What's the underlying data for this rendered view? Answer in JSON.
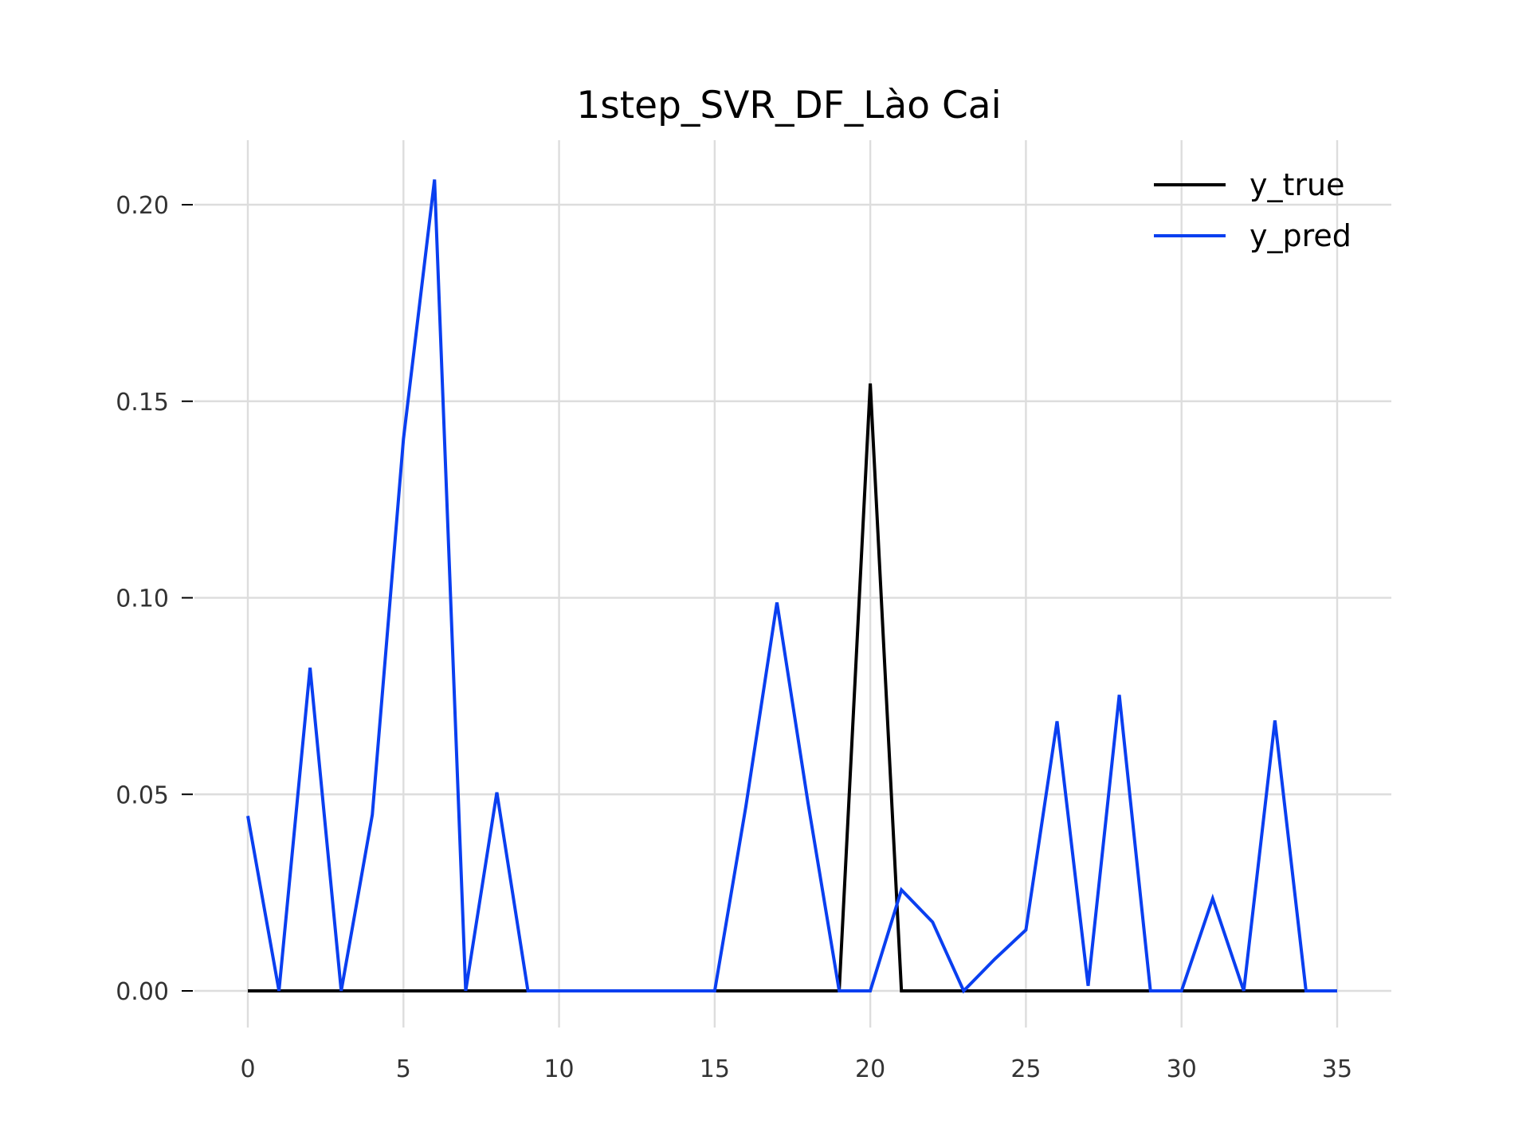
{
  "chart_data": {
    "type": "line",
    "title": "1step_SVR_DF_Lào Cai",
    "xlabel": "",
    "ylabel": "",
    "xlim": [
      0,
      35
    ],
    "ylim": [
      0,
      0.2
    ],
    "x_ticks": [
      0,
      5,
      10,
      15,
      20,
      25,
      30,
      35
    ],
    "x_tick_labels": [
      "0",
      "5",
      "10",
      "15",
      "20",
      "25",
      "30",
      "35"
    ],
    "y_ticks": [
      0,
      0.05,
      0.1,
      0.15,
      0.2
    ],
    "y_tick_labels": [
      "0.00",
      "0.05",
      "0.10",
      "0.15",
      "0.20"
    ],
    "grid": true,
    "legend_position": "top-right",
    "x": [
      0,
      1,
      2,
      3,
      4,
      5,
      6,
      7,
      8,
      9,
      10,
      11,
      12,
      13,
      14,
      15,
      16,
      17,
      18,
      19,
      20,
      21,
      22,
      23,
      24,
      25,
      26,
      27,
      28,
      29,
      30,
      31,
      32,
      33,
      34,
      35
    ],
    "series": [
      {
        "name": "y_true",
        "color": "#000000",
        "values": [
          0,
          0,
          0,
          0,
          0,
          0,
          0,
          0,
          0,
          0,
          0,
          0,
          0,
          0,
          0,
          0,
          0,
          0,
          0,
          0,
          0.1545,
          0,
          0,
          0,
          0,
          0,
          0,
          0,
          0,
          0,
          0,
          0,
          0,
          0,
          0,
          0
        ]
      },
      {
        "name": "y_pred",
        "color": "#0a3ff0",
        "values": [
          0.0445,
          0,
          0.0822,
          0,
          0.0448,
          0.1404,
          0.2064,
          0,
          0.0505,
          0,
          0,
          0,
          0,
          0,
          0,
          0,
          0.0468,
          0.0988,
          0.0478,
          0,
          0,
          0.0257,
          0.0175,
          0,
          0.0081,
          0.0155,
          0.0686,
          0.0013,
          0.0753,
          0,
          0,
          0.0235,
          0,
          0.0688,
          0,
          0
        ]
      }
    ]
  }
}
